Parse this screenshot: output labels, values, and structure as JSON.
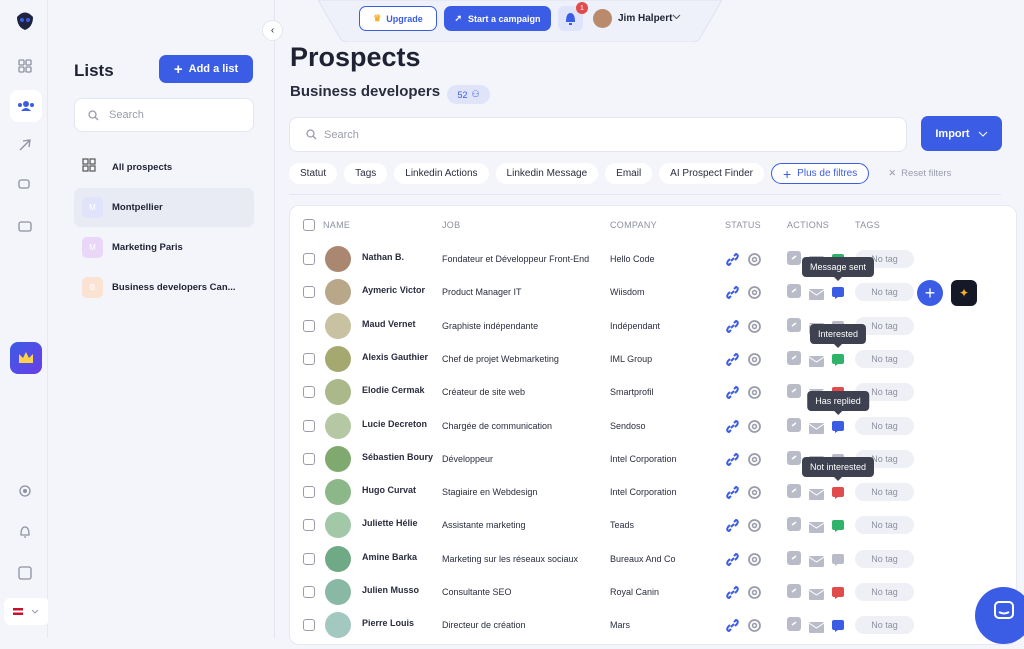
{
  "topbar": {
    "upgrade": "Upgrade",
    "campaign": "Start a campaign",
    "notifications": "1",
    "user": "Jim Halpert"
  },
  "lists_panel": {
    "title": "Lists",
    "add": "Add a list",
    "search": "Search",
    "items": [
      {
        "label": "All prospects"
      },
      {
        "initial": "M",
        "label": "Montpellier",
        "color": "#dfe4fb"
      },
      {
        "initial": "M",
        "label": "Marketing Paris",
        "color": "#ead7f7"
      },
      {
        "initial": "B",
        "label": "Business developers Can...",
        "color": "#fbe3d4"
      }
    ]
  },
  "main": {
    "title": "Prospects",
    "subtitle": "Business developers",
    "count": "52",
    "search": "Search",
    "import": "Import",
    "filters": [
      "Statut",
      "Tags",
      "Linkedin Actions",
      "Linkedin Message",
      "Email",
      "AI Prospect Finder"
    ],
    "more_filters": "Plus de filtres",
    "reset": "Reset filters"
  },
  "table": {
    "headers": [
      "NAME",
      "JOB",
      "COMPANY",
      "STATUS",
      "ACTIONS",
      "TAGS"
    ],
    "rows": [
      {
        "name": "Nathan B.",
        "job": "Fondateur et Développeur Front-End",
        "company": "Hello Code",
        "tag": "No tag",
        "color": "#2fb36b"
      },
      {
        "name": "Aymeric Victor",
        "job": "Product Manager IT",
        "company": "Wiisdom",
        "tag": "No tag",
        "color": "#3b5ce4",
        "tooltip": "Message sent"
      },
      {
        "name": "Maud Vernet",
        "job": "Graphiste indépendante",
        "company": "Indépendant",
        "tag": "No tag",
        "color": "#b9bcc8"
      },
      {
        "name": "Alexis Gauthier",
        "job": "Chef de projet Webmarketing",
        "company": "IML Group",
        "tag": "No tag",
        "color": "#2fb36b",
        "tooltip": "Interested"
      },
      {
        "name": "Elodie Cermak",
        "job": "Créateur de site web",
        "company": "Smartprofil",
        "tag": "No tag",
        "color": "#e24b4b"
      },
      {
        "name": "Lucie Decreton",
        "job": "Chargée de communication",
        "company": "Sendoso",
        "tag": "No tag",
        "color": "#3b5ce4",
        "tooltip": "Has replied"
      },
      {
        "name": "Sébastien Boury",
        "job": "Développeur",
        "company": "Intel Corporation",
        "tag": "No tag",
        "color": "#b9bcc8"
      },
      {
        "name": "Hugo Curvat",
        "job": "Stagiaire en Webdesign",
        "company": "Intel Corporation",
        "tag": "No tag",
        "color": "#e24b4b",
        "tooltip": "Not interested"
      },
      {
        "name": "Juliette Hélie",
        "job": "Assistante marketing",
        "company": "Teads",
        "tag": "No tag",
        "color": "#2fb36b"
      },
      {
        "name": "Amine Barka",
        "job": "Marketing sur les réseaux sociaux",
        "company": "Bureaux And Co",
        "tag": "No tag",
        "color": "#b9bcc8"
      },
      {
        "name": "Julien Musso",
        "job": "Consultante SEO",
        "company": "Royal Canin",
        "tag": "No tag",
        "color": "#e24b4b"
      },
      {
        "name": "Pierre Louis",
        "job": "Directeur de création",
        "company": "Mars",
        "tag": "No tag",
        "color": "#3b5ce4"
      }
    ]
  }
}
